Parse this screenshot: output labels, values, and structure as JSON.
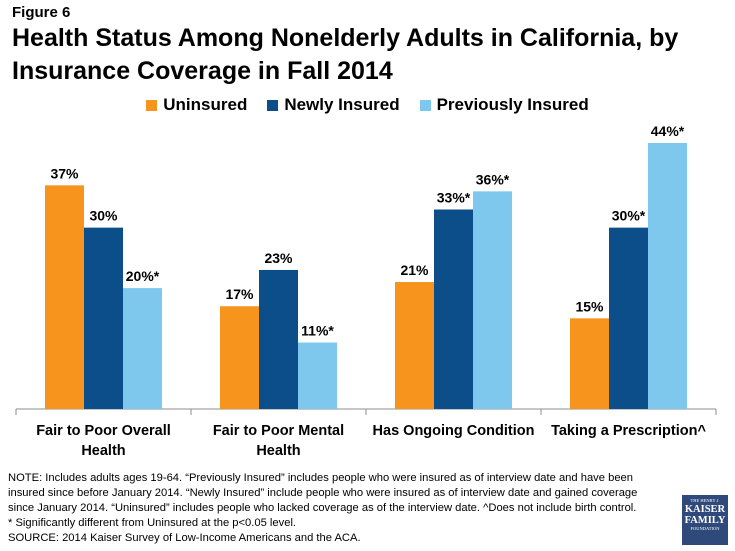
{
  "figure_label": "Figure 6",
  "title": "Health Status Among Nonelderly Adults in California, by Insurance Coverage in Fall 2014",
  "legend": [
    {
      "label": "Uninsured",
      "color": "#f7941d"
    },
    {
      "label": "Newly Insured",
      "color": "#0b4e8a"
    },
    {
      "label": "Previously Insured",
      "color": "#7dc8ec"
    }
  ],
  "chart_data": {
    "type": "bar",
    "title": "Health Status Among Nonelderly Adults in California, by Insurance Coverage in Fall 2014",
    "xlabel": "",
    "ylabel": "",
    "ylim": [
      0,
      44
    ],
    "categories": [
      [
        "Fair to Poor Overall",
        "Health"
      ],
      [
        "Fair to Poor Mental",
        "Health"
      ],
      [
        "Has Ongoing Condition"
      ],
      [
        "Taking a Prescription^"
      ]
    ],
    "series": [
      {
        "name": "Uninsured",
        "color": "#f7941d",
        "values": [
          37,
          17,
          21,
          15
        ],
        "labels": [
          "37%",
          "17%",
          "21%",
          "15%"
        ]
      },
      {
        "name": "Newly Insured",
        "color": "#0b4e8a",
        "values": [
          30,
          23,
          33,
          30
        ],
        "labels": [
          "30%",
          "23%",
          "33%*",
          "30%*"
        ]
      },
      {
        "name": "Previously Insured",
        "color": "#7dc8ec",
        "values": [
          20,
          11,
          36,
          44
        ],
        "labels": [
          "20%*",
          "11%*",
          "36%*",
          "44%*"
        ]
      }
    ]
  },
  "notes": [
    "NOTE: Includes adults ages 19-64. “Previously Insured” includes people who were insured as of interview date and have been",
    "insured since before January 2014. “Newly Insured” include people who were insured as of interview date and gained coverage",
    "since January 2014. “Uninsured” includes people who lacked coverage as of the interview date. ^Does not include birth control.",
    "* Significantly different from Uninsured at the p<0.05 level.",
    "SOURCE: 2014 Kaiser Survey of Low-Income Americans and the ACA."
  ],
  "logo": {
    "line1": "THE HENRY J.",
    "line2": "KAISER",
    "line3": "FAMILY",
    "line4": "FOUNDATION"
  }
}
